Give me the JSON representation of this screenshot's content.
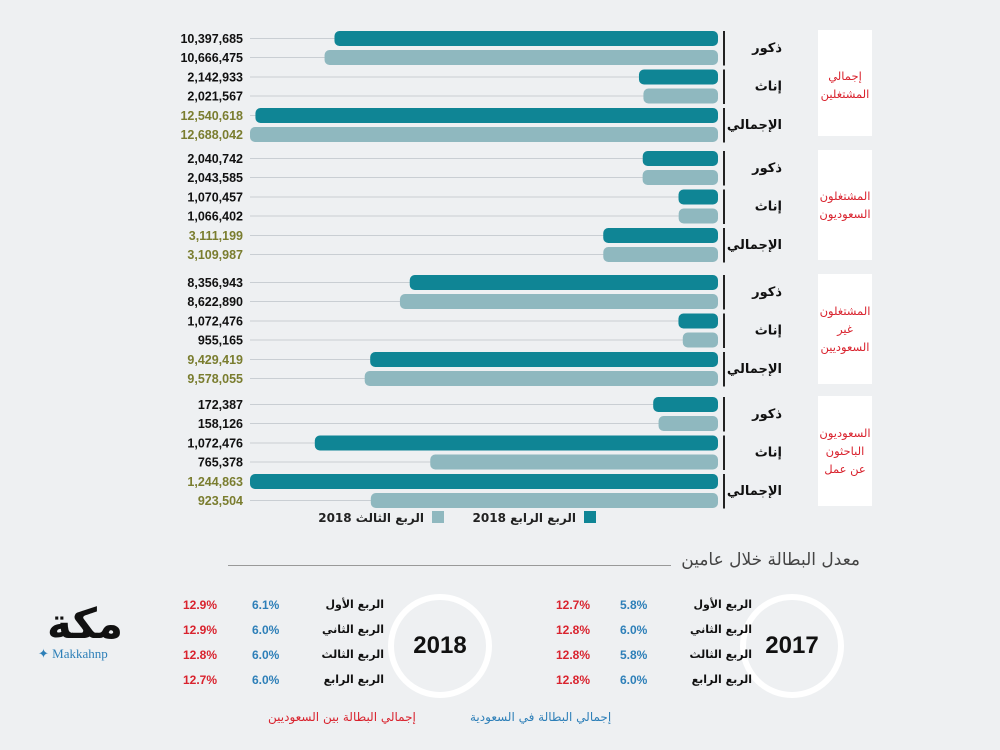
{
  "chart_data": {
    "type": "bar",
    "orientation": "horizontal",
    "groups": [
      {
        "label": "إجمالي المشتغلين",
        "rows": [
          {
            "gender": "ذكور",
            "q4_2018": 10397685,
            "q3_2018": 10666475,
            "q4_text": "10,397,685",
            "q3_text": "10,666,475"
          },
          {
            "gender": "إناث",
            "q4_2018": 2142933,
            "q3_2018": 2021567,
            "q4_text": "2,142,933",
            "q3_text": "2,021,567"
          },
          {
            "gender": "الإجمالي",
            "q4_2018": 12540618,
            "q3_2018": 12688042,
            "q4_text": "12,540,618",
            "q3_text": "12,688,042"
          }
        ]
      },
      {
        "label": "المشتغلون السعوديون",
        "rows": [
          {
            "gender": "ذكور",
            "q4_2018": 2040742,
            "q3_2018": 2043585,
            "q4_text": "2,040,742",
            "q3_text": "2,043,585"
          },
          {
            "gender": "إناث",
            "q4_2018": 1070457,
            "q3_2018": 1066402,
            "q4_text": "1,070,457",
            "q3_text": "1,066,402"
          },
          {
            "gender": "الإجمالي",
            "q4_2018": 3111199,
            "q3_2018": 3109987,
            "q4_text": "3,111,199",
            "q3_text": "3,109,987"
          }
        ]
      },
      {
        "label": "المشتغلون غير السعوديين",
        "rows": [
          {
            "gender": "ذكور",
            "q4_2018": 8356943,
            "q3_2018": 8622890,
            "q4_text": "8,356,943",
            "q3_text": "8,622,890"
          },
          {
            "gender": "إناث",
            "q4_2018": 1072476,
            "q3_2018": 955165,
            "q4_text": "1,072,476",
            "q3_text": "955,165"
          },
          {
            "gender": "الإجمالي",
            "q4_2018": 9429419,
            "q3_2018": 9578055,
            "q4_text": "9,429,419",
            "q3_text": "9,578,055"
          }
        ]
      },
      {
        "label": "السعوديون الباحثون عن عمل",
        "rows": [
          {
            "gender": "ذكور",
            "q4_2018": 172387,
            "q3_2018": 158126,
            "q4_text": "172,387",
            "q3_text": "158,126"
          },
          {
            "gender": "إناث",
            "q4_2018": 1072476,
            "q3_2018": 765378,
            "q4_text": "1,072,476",
            "q3_text": "765,378"
          },
          {
            "gender": "الإجمالي",
            "q4_2018": 1244863,
            "q3_2018": 923504,
            "q4_text": "1,244,863",
            "q3_text": "923,504"
          }
        ]
      }
    ],
    "series": [
      {
        "key": "q4_2018",
        "name": "الربع الرابع 2018",
        "color": "#0f8595"
      },
      {
        "key": "q3_2018",
        "name": "الربع الثالث 2018",
        "color": "#8fb8bf"
      }
    ],
    "group_label_lines": [
      [
        "إجمالي",
        "المشتغلين"
      ],
      [
        "المشتغلون",
        "السعوديون"
      ],
      [
        "المشتغلون",
        "غير",
        "السعوديين"
      ],
      [
        "السعوديون",
        "الباحثون",
        "عن عمل"
      ]
    ],
    "group_scales": [
      12688042,
      12688042,
      12688042,
      1244863
    ],
    "total_value_color": "#7a7d2f"
  },
  "unemployment": {
    "title": "معدل البطالة خلال عامين",
    "years": [
      {
        "year": "2017",
        "quarters": [
          {
            "name": "الربع الأول",
            "saudi_total": "5.8%",
            "saudis": "12.7%"
          },
          {
            "name": "الربع الثاني",
            "saudi_total": "6.0%",
            "saudis": "12.8%"
          },
          {
            "name": "الربع الثالث",
            "saudi_total": "5.8%",
            "saudis": "12.8%"
          },
          {
            "name": "الربع الرابع",
            "saudi_total": "6.0%",
            "saudis": "12.8%"
          }
        ]
      },
      {
        "year": "2018",
        "quarters": [
          {
            "name": "الربع الأول",
            "saudi_total": "6.1%",
            "saudis": "12.9%"
          },
          {
            "name": "الربع الثاني",
            "saudi_total": "6.0%",
            "saudis": "12.9%"
          },
          {
            "name": "الربع الثالث",
            "saudi_total": "6.0%",
            "saudis": "12.8%"
          },
          {
            "name": "الربع الرابع",
            "saudi_total": "6.0%",
            "saudis": "12.7%"
          }
        ]
      }
    ],
    "legend_blue": "إجمالي البطالة في السعودية",
    "legend_red": "إجمالي البطالة بين السعوديين"
  },
  "logo": {
    "brand": "مكة",
    "handle": "Makkahnp"
  }
}
